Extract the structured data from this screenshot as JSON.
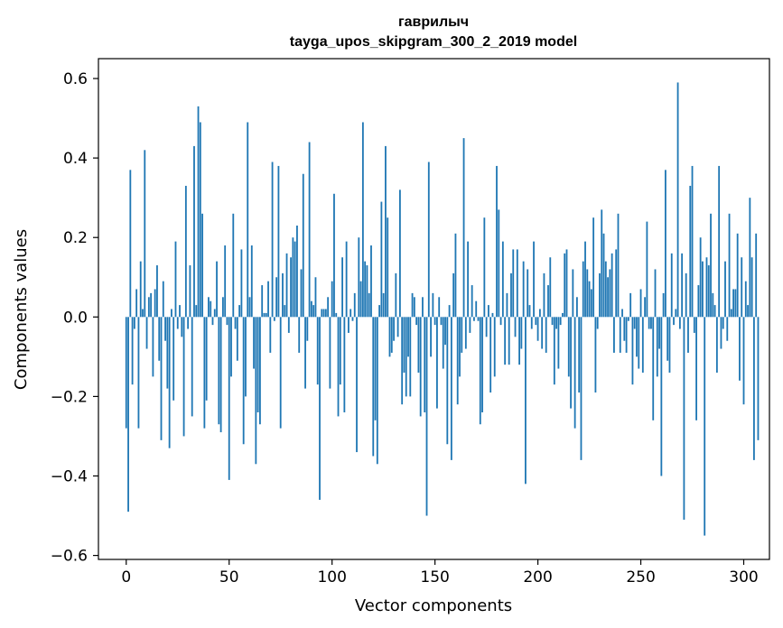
{
  "chart_data": {
    "type": "bar",
    "title": "гаврилыч",
    "subtitle": "tayga_upos_skipgram_300_2_2019 model",
    "xlabel": "Vector components",
    "ylabel": "Components values",
    "xlim": [
      -13.5,
      312.5
    ],
    "ylim": [
      -0.61,
      0.65
    ],
    "x_ticks": [
      0,
      50,
      100,
      150,
      200,
      250,
      300
    ],
    "x_tick_labels": [
      "0",
      "50",
      "100",
      "150",
      "200",
      "250",
      "300"
    ],
    "y_ticks": [
      -0.6,
      -0.4,
      -0.2,
      0.0,
      0.2,
      0.4,
      0.6
    ],
    "y_tick_labels": [
      "−0.6",
      "−0.4",
      "−0.2",
      "0.0",
      "0.2",
      "0.4",
      "0.6"
    ],
    "bar_color": "#1f77b4",
    "grid": false,
    "values": [
      -0.28,
      -0.49,
      0.37,
      -0.17,
      -0.03,
      0.07,
      -0.28,
      0.14,
      0.02,
      0.42,
      -0.08,
      0.05,
      0.06,
      -0.15,
      0.07,
      0.13,
      -0.11,
      -0.31,
      0.09,
      -0.06,
      -0.18,
      -0.33,
      0.02,
      -0.21,
      0.19,
      -0.03,
      0.03,
      -0.05,
      -0.3,
      0.33,
      -0.03,
      0.13,
      -0.25,
      0.43,
      0.03,
      0.53,
      0.49,
      0.26,
      -0.28,
      -0.21,
      0.05,
      0.04,
      -0.02,
      0.02,
      0.14,
      -0.27,
      -0.29,
      0.05,
      0.18,
      -0.02,
      -0.41,
      -0.15,
      0.26,
      -0.03,
      -0.11,
      0.03,
      0.17,
      -0.32,
      -0.2,
      0.49,
      0.05,
      0.18,
      -0.13,
      -0.37,
      -0.24,
      -0.27,
      0.08,
      0.01,
      0.01,
      0.09,
      -0.09,
      0.39,
      -0.01,
      0.1,
      0.38,
      -0.28,
      0.11,
      0.03,
      0.16,
      -0.04,
      0.15,
      0.2,
      0.19,
      0.23,
      -0.09,
      0.12,
      0.36,
      -0.18,
      -0.06,
      0.44,
      0.04,
      0.03,
      0.1,
      -0.17,
      -0.46,
      0.02,
      0.02,
      0.02,
      0.05,
      -0.18,
      0.09,
      0.31,
      0.01,
      -0.25,
      -0.17,
      0.15,
      -0.24,
      0.19,
      -0.04,
      0.02,
      -0.01,
      0.06,
      -0.34,
      0.2,
      0.09,
      0.49,
      0.14,
      0.13,
      0.06,
      0.18,
      -0.35,
      -0.26,
      -0.37,
      0.03,
      0.29,
      0.06,
      0.43,
      0.25,
      -0.1,
      -0.09,
      -0.06,
      0.11,
      -0.05,
      0.32,
      -0.22,
      -0.14,
      -0.2,
      -0.1,
      -0.2,
      0.06,
      0.05,
      -0.02,
      -0.14,
      -0.25,
      0.05,
      -0.24,
      -0.5,
      0.39,
      -0.1,
      0.06,
      -0.02,
      -0.23,
      0.05,
      -0.02,
      -0.13,
      -0.07,
      -0.32,
      0.03,
      -0.36,
      0.11,
      0.21,
      -0.22,
      -0.15,
      -0.09,
      0.45,
      -0.08,
      0.19,
      -0.04,
      0.08,
      -0.01,
      0.04,
      -0.01,
      -0.27,
      -0.24,
      0.25,
      -0.05,
      0.03,
      -0.19,
      0.01,
      -0.15,
      0.38,
      0.27,
      -0.02,
      0.19,
      -0.12,
      0.06,
      -0.12,
      0.11,
      0.17,
      -0.05,
      0.17,
      -0.12,
      -0.08,
      0.14,
      -0.42,
      0.12,
      0.03,
      -0.03,
      0.19,
      -0.02,
      -0.06,
      0.02,
      -0.08,
      0.11,
      -0.09,
      0.08,
      0.15,
      -0.02,
      -0.17,
      -0.03,
      -0.13,
      -0.02,
      0.01,
      0.16,
      0.17,
      -0.15,
      -0.23,
      0.12,
      -0.28,
      0.05,
      -0.19,
      -0.36,
      0.14,
      0.19,
      0.12,
      0.09,
      0.07,
      0.25,
      -0.19,
      -0.03,
      0.11,
      0.27,
      0.21,
      0.14,
      0.1,
      0.12,
      0.16,
      -0.09,
      0.17,
      0.26,
      -0.09,
      0.02,
      -0.06,
      -0.09,
      -0.01,
      0.06,
      -0.17,
      -0.03,
      -0.1,
      -0.13,
      0.07,
      -0.14,
      0.05,
      0.24,
      -0.03,
      -0.03,
      -0.26,
      0.12,
      -0.15,
      -0.08,
      -0.4,
      0.06,
      0.37,
      -0.11,
      -0.14,
      0.16,
      -0.02,
      0.02,
      0.59,
      -0.03,
      0.16,
      -0.51,
      0.11,
      -0.09,
      0.33,
      0.38,
      -0.04,
      -0.26,
      0.08,
      0.2,
      0.14,
      -0.55,
      0.15,
      0.13,
      0.26,
      0.06,
      0.03,
      -0.14,
      0.38,
      -0.08,
      -0.03,
      0.14,
      -0.06,
      0.26,
      0.02,
      0.07,
      0.07,
      0.21,
      -0.16,
      0.15,
      -0.22,
      0.09,
      0.03,
      0.3,
      0.15,
      -0.36,
      0.21,
      -0.31
    ]
  }
}
